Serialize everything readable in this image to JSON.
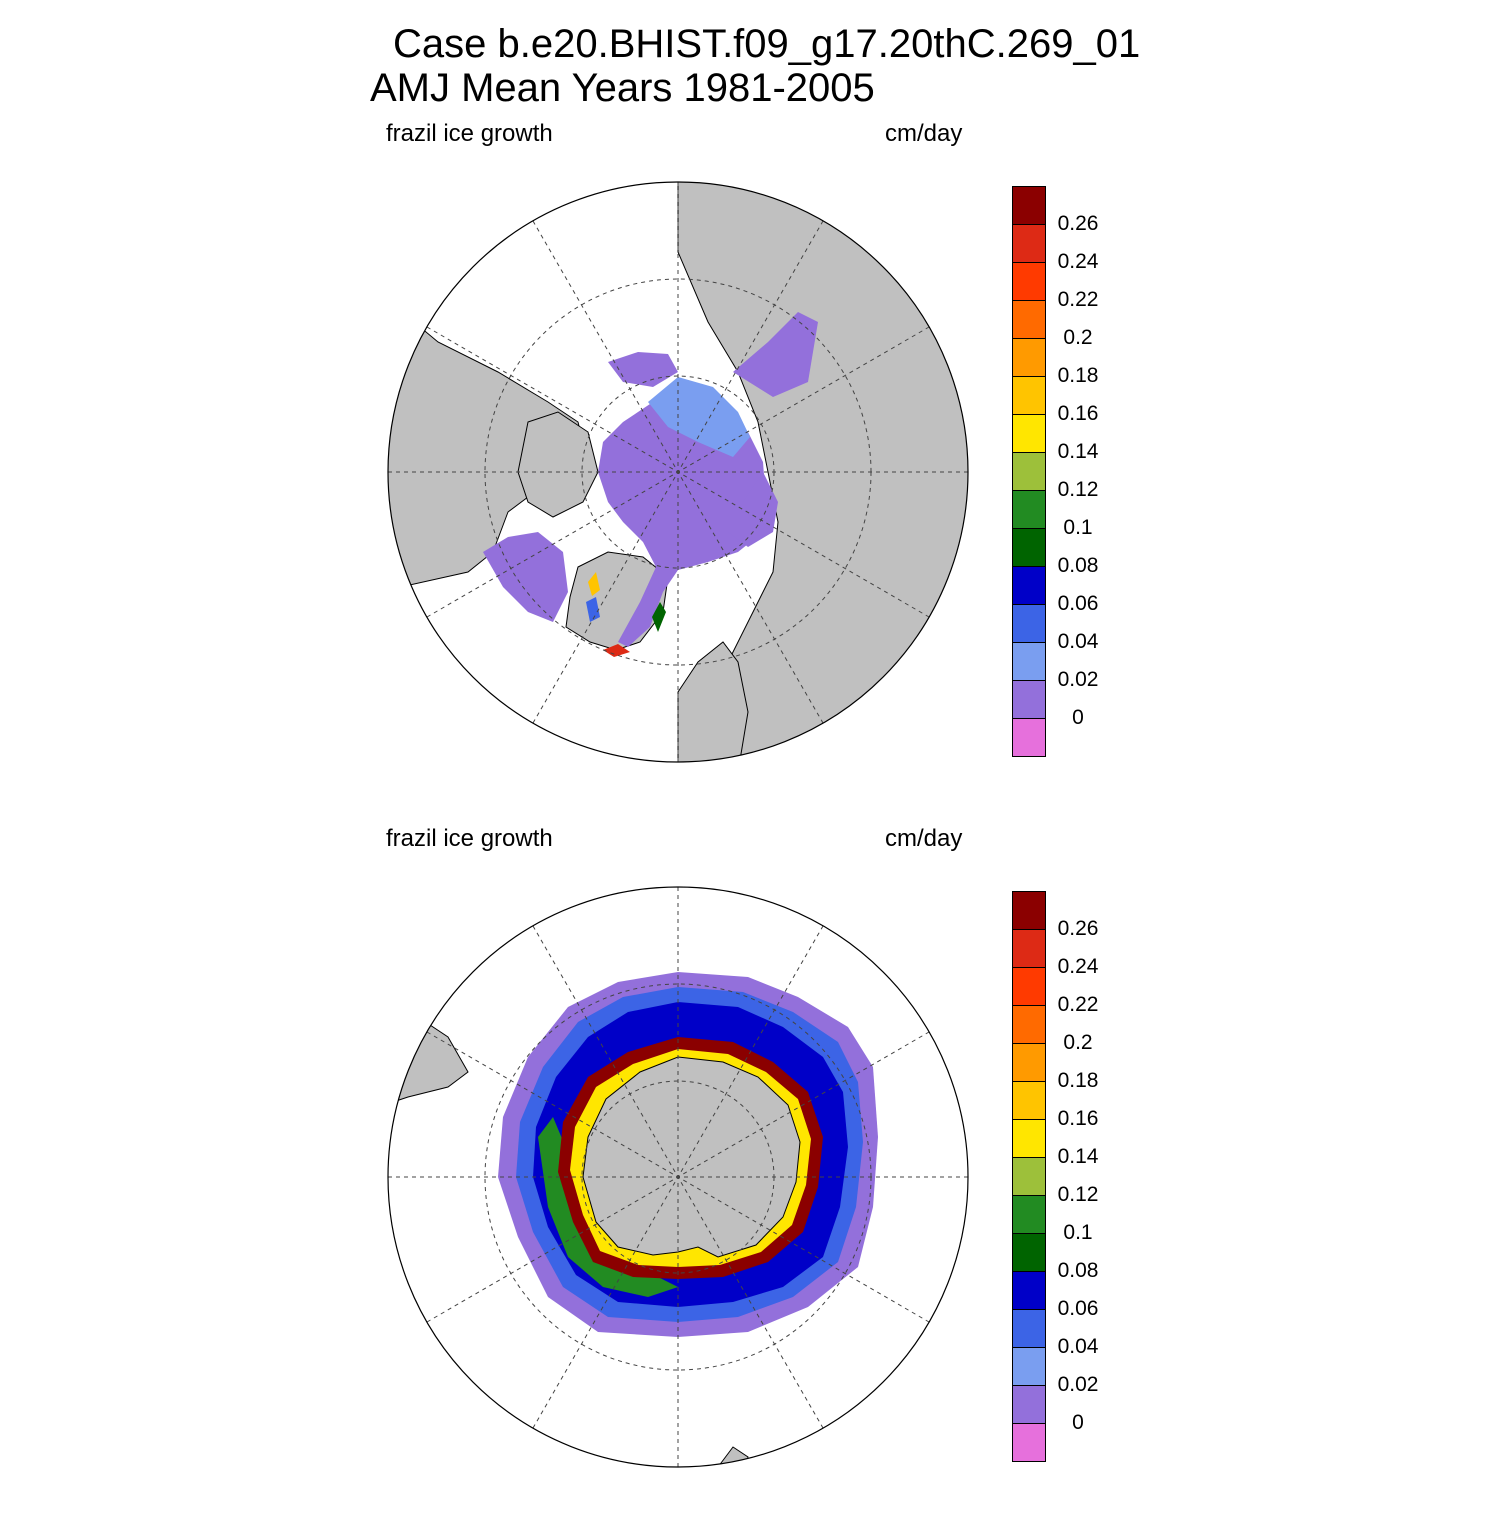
{
  "header": {
    "title_line1": "Case b.e20.BHIST.f09_g17.20thC.269_01",
    "title_line2": "AMJ Mean   Years 1981-2005"
  },
  "panels": [
    {
      "variable": "frazil ice growth",
      "units": "cm/day",
      "hemisphere": "north"
    },
    {
      "variable": "frazil ice growth",
      "units": "cm/day",
      "hemisphere": "south"
    }
  ],
  "colorbar": {
    "labels": [
      "0.26",
      "0.24",
      "0.22",
      "0.2",
      "0.18",
      "0.16",
      "0.14",
      "0.12",
      "0.1",
      "0.08",
      "0.06",
      "0.04",
      "0.02",
      "0"
    ],
    "colors": [
      "#8b0000",
      "#dd2a15",
      "#ff3a00",
      "#ff6a00",
      "#ff9a00",
      "#ffc400",
      "#ffe600",
      "#9dc03a",
      "#228b22",
      "#006400",
      "#0000c8",
      "#3c64e6",
      "#7a9ef0",
      "#9370db",
      "#e670dc"
    ]
  },
  "map_colors": {
    "land": "#c0c0c0",
    "ocean": "#ffffff",
    "grid": "#444444"
  }
}
